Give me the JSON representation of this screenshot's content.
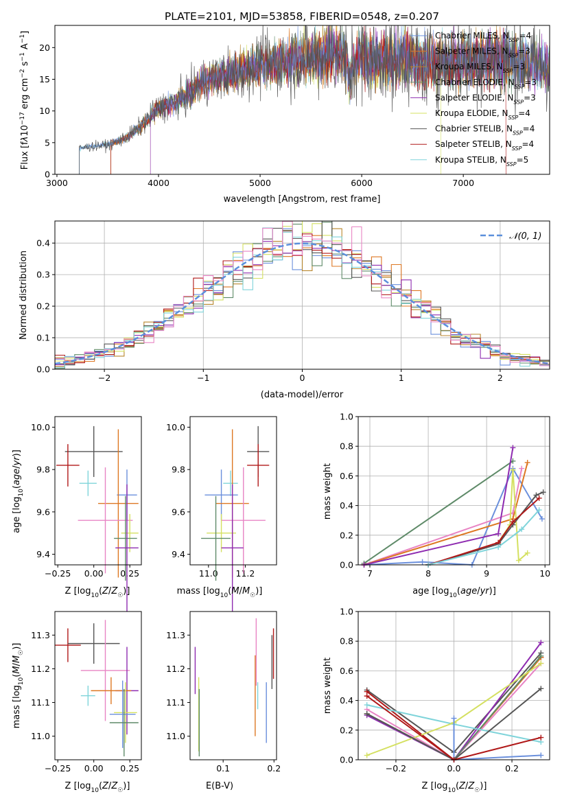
{
  "figure": {
    "title": "PLATE=2101, MJD=53858, FIBERID=0548, z=0.207"
  },
  "colors": {
    "Chabrier MILES": "#6a8fdc",
    "Salpeter MILES": "#dd7722",
    "Kroupa MILES": "#b8862c",
    "Chabrier ELODIE": "#5e8a68",
    "Salpeter ELODIE": "#8e2bb0",
    "Kroupa ELODIE": "#d4e060",
    "Chabrier STELIB": "#555555",
    "Salpeter STELIB": "#b01818",
    "Kroupa STELIB": "#7fd4da",
    "pink": "#e884c4"
  },
  "chart_data": [
    {
      "id": "spectrum",
      "type": "line",
      "xlabel": "wavelength [Angstrom, rest frame]",
      "ylabel": "Flux [fλ10⁻¹⁷ erg cm⁻² s⁻¹ A⁻¹]",
      "xlim": [
        2980,
        7850
      ],
      "ylim": [
        0,
        23.5
      ],
      "xticks": [
        3000,
        4000,
        5000,
        6000,
        7000
      ],
      "yticks": [
        0,
        5,
        10,
        15,
        20
      ],
      "legend_position": "right",
      "series": [
        {
          "name": "Chabrier MILES, N_SSP=4",
          "color": "#6a8fdc"
        },
        {
          "name": "Salpeter MILES, N_SSP=3",
          "color": "#dd7722"
        },
        {
          "name": "Kroupa MILES, N_SSP=3",
          "color": "#b8862c"
        },
        {
          "name": "Chabrier ELODIE, N_SSP=3",
          "color": "#5e8a68"
        },
        {
          "name": "Salpeter ELODIE, N_SSP=3",
          "color": "#8e2bb0"
        },
        {
          "name": "Kroupa ELODIE, N_SSP=4",
          "color": "#d4e060"
        },
        {
          "name": "Chabrier STELIB, N_SSP=4",
          "color": "#555555"
        },
        {
          "name": "Salpeter STELIB, N_SSP=4",
          "color": "#b01818"
        },
        {
          "name": "Kroupa STELIB, N_SSP=5",
          "color": "#7fd4da"
        }
      ],
      "continuum": {
        "x": [
          3220,
          3300,
          3400,
          3500,
          3600,
          3700,
          3800,
          3900,
          4000,
          4100,
          4200,
          4300,
          4400,
          4500,
          4600,
          4700,
          4800,
          4900,
          5000,
          5100,
          5200,
          5300,
          5400,
          5500,
          5600,
          5700,
          5800,
          5900,
          6000,
          6100,
          6200,
          6300,
          6400,
          6500,
          6600,
          6700,
          6800,
          6900,
          7000,
          7100,
          7200,
          7300,
          7400,
          7500,
          7600,
          7700,
          7800
        ],
        "y": [
          4.1,
          4.3,
          4.5,
          4.6,
          5.2,
          6.0,
          7.2,
          8.8,
          10.4,
          11.0,
          11.7,
          12.6,
          14.2,
          15.0,
          15.6,
          15.8,
          16.2,
          16.8,
          17.4,
          17.2,
          17.9,
          18.2,
          18.4,
          18.2,
          18.6,
          19.0,
          19.2,
          16.8,
          18.8,
          17.8,
          18.4,
          17.6,
          18.6,
          17.8,
          17.6,
          17.8,
          17.6,
          17.8,
          18.0,
          17.8,
          18.2,
          18.4,
          18.2,
          18.0,
          17.6,
          17.4,
          17.2
        ]
      },
      "start_edges": [
        3220,
        3530,
        3920
      ]
    },
    {
      "id": "residual-histogram",
      "type": "line",
      "xlabel": "(data-model)/error",
      "ylabel": "Normed distribution",
      "xlim": [
        -2.5,
        2.5
      ],
      "ylim": [
        0,
        0.47
      ],
      "xticks": [
        -2,
        -1,
        0,
        1,
        2
      ],
      "yticks": [
        0.0,
        0.1,
        0.2,
        0.3,
        0.4
      ],
      "grid": true,
      "legend_position": "top-right",
      "reference": {
        "name": "𝒩(0, 1)",
        "color": "#5b8fdc",
        "style": "dashed"
      },
      "bin_width": 0.1
    },
    {
      "id": "age-vs-Z",
      "type": "scatter",
      "xlabel": "Z [log₁₀(Z/Z☉)]",
      "ylabel": "age  [log₁₀(age/yr)]",
      "xlim": [
        -0.27,
        0.33
      ],
      "ylim": [
        9.35,
        10.05
      ],
      "xticks": [
        -0.25,
        0.0,
        0.25
      ],
      "yticks": [
        9.4,
        9.6,
        9.8,
        10.0
      ],
      "errorbars": [
        {
          "color": "#555555",
          "x": 0.0,
          "xerr": 0.2,
          "y": 9.885,
          "yerr": 0.12
        },
        {
          "color": "#b01818",
          "x": -0.18,
          "xerr": 0.08,
          "y": 9.82,
          "yerr": 0.1
        },
        {
          "color": "#7fd4da",
          "x": -0.04,
          "xerr": 0.06,
          "y": 9.735,
          "yerr": 0.06
        },
        {
          "color": "#6a8fdc",
          "x": 0.23,
          "xerr": 0.07,
          "y": 9.68,
          "yerr": 0.12
        },
        {
          "color": "#dd7722",
          "x": 0.17,
          "xerr": 0.14,
          "y": 9.64,
          "yerr": 0.35
        },
        {
          "color": "#e884c4",
          "x": 0.08,
          "xerr": 0.19,
          "y": 9.56,
          "yerr": 0.25
        },
        {
          "color": "#d4e060",
          "x": 0.25,
          "xerr": 0.06,
          "y": 9.5,
          "yerr": 0.09
        },
        {
          "color": "#5e8a68",
          "x": 0.22,
          "xerr": 0.08,
          "y": 9.475,
          "yerr": 0.2
        },
        {
          "color": "#8e2bb0",
          "x": 0.23,
          "xerr": 0.08,
          "y": 9.43,
          "yerr": 0.3
        }
      ]
    },
    {
      "id": "age-vs-mass",
      "type": "scatter",
      "xlabel": "mass [log₁₀(M/M☉)]",
      "ylabel": "",
      "xlim": [
        10.9,
        11.37
      ],
      "ylim": [
        9.35,
        10.05
      ],
      "xticks": [
        11.0,
        11.2
      ],
      "yticks": [
        9.4,
        9.6,
        9.8,
        10.0
      ],
      "errorbars": [
        {
          "color": "#555555",
          "x": 11.27,
          "xerr": 0.06,
          "y": 9.885,
          "yerr": 0.12
        },
        {
          "color": "#b01818",
          "x": 11.27,
          "xerr": 0.06,
          "y": 9.82,
          "yerr": 0.1
        },
        {
          "color": "#7fd4da",
          "x": 11.12,
          "xerr": 0.04,
          "y": 9.735,
          "yerr": 0.06
        },
        {
          "color": "#6a8fdc",
          "x": 11.07,
          "xerr": 0.09,
          "y": 9.68,
          "yerr": 0.12
        },
        {
          "color": "#dd7722",
          "x": 11.13,
          "xerr": 0.09,
          "y": 9.64,
          "yerr": 0.35
        },
        {
          "color": "#e884c4",
          "x": 11.19,
          "xerr": 0.12,
          "y": 9.56,
          "yerr": 0.25
        },
        {
          "color": "#d4e060",
          "x": 11.07,
          "xerr": 0.08,
          "y": 9.5,
          "yerr": 0.09
        },
        {
          "color": "#5e8a68",
          "x": 11.04,
          "xerr": 0.08,
          "y": 9.475,
          "yerr": 0.2
        },
        {
          "color": "#8e2bb0",
          "x": 11.13,
          "xerr": 0.06,
          "y": 9.43,
          "yerr": 0.3
        }
      ]
    },
    {
      "id": "weight-vs-age",
      "type": "line",
      "xlabel": "age  [log₁₀(age/yr)]",
      "ylabel": "mass weight",
      "xlim": [
        6.8,
        10.08
      ],
      "ylim": [
        0,
        1.0
      ],
      "xticks": [
        7,
        8,
        9,
        10
      ],
      "yticks": [
        0.0,
        0.2,
        0.4,
        0.6,
        0.8,
        1.0
      ],
      "grid": true,
      "series": [
        {
          "color": "#5e8a68",
          "x": [
            6.9,
            9.45
          ],
          "y": [
            0.01,
            0.7
          ]
        },
        {
          "color": "#6a8fdc",
          "x": [
            6.9,
            7.9,
            8.75,
            9.45,
            9.95
          ],
          "y": [
            0.0,
            0.02,
            0.0,
            0.65,
            0.31
          ]
        },
        {
          "color": "#e884c4",
          "x": [
            6.9,
            9.45,
            9.6
          ],
          "y": [
            0.0,
            0.35,
            0.65
          ]
        },
        {
          "color": "#dd7722",
          "x": [
            6.9,
            9.45,
            9.7
          ],
          "y": [
            0.0,
            0.31,
            0.69
          ]
        },
        {
          "color": "#8e2bb0",
          "x": [
            6.9,
            9.2,
            9.45
          ],
          "y": [
            0.0,
            0.21,
            0.79
          ]
        },
        {
          "color": "#d4e060",
          "x": [
            9.2,
            9.4,
            9.45,
            9.55,
            9.7
          ],
          "y": [
            0.15,
            0.27,
            0.64,
            0.03,
            0.08
          ]
        },
        {
          "color": "#555555",
          "x": [
            8.0,
            9.2,
            9.45,
            9.85,
            9.97
          ],
          "y": [
            0.0,
            0.14,
            0.27,
            0.47,
            0.49
          ]
        },
        {
          "color": "#b01818",
          "x": [
            8.0,
            9.2,
            9.45,
            9.9
          ],
          "y": [
            0.0,
            0.15,
            0.29,
            0.45
          ]
        },
        {
          "color": "#7fd4da",
          "x": [
            8.0,
            9.2,
            9.6,
            9.9
          ],
          "y": [
            0.0,
            0.12,
            0.24,
            0.37
          ]
        }
      ]
    },
    {
      "id": "mass-vs-Z",
      "type": "scatter",
      "xlabel": "Z [log₁₀(Z/Z☉)]",
      "ylabel": "mass [log₁₀(M/M☉)]",
      "xlim": [
        -0.27,
        0.33
      ],
      "ylim": [
        10.93,
        11.37
      ],
      "xticks": [
        -0.25,
        0.0,
        0.25
      ],
      "yticks": [
        11.0,
        11.1,
        11.2,
        11.3
      ],
      "errorbars": [
        {
          "color": "#b01818",
          "x": -0.18,
          "xerr": 0.09,
          "y": 11.27,
          "yerr": 0.05
        },
        {
          "color": "#555555",
          "x": 0.0,
          "xerr": 0.18,
          "y": 11.275,
          "yerr": 0.06
        },
        {
          "color": "#e884c4",
          "x": 0.08,
          "xerr": 0.17,
          "y": 11.195,
          "yerr": 0.15
        },
        {
          "color": "#8e2bb0",
          "x": 0.23,
          "xerr": 0.08,
          "y": 11.135,
          "yerr": 0.13
        },
        {
          "color": "#dd7722",
          "x": 0.12,
          "xerr": 0.14,
          "y": 11.135,
          "yerr": 0.04
        },
        {
          "color": "#7fd4da",
          "x": -0.04,
          "xerr": 0.05,
          "y": 11.12,
          "yerr": 0.03
        },
        {
          "color": "#d4e060",
          "x": 0.22,
          "xerr": 0.08,
          "y": 11.07,
          "yerr": 0.09
        },
        {
          "color": "#6a8fdc",
          "x": 0.2,
          "xerr": 0.09,
          "y": 11.065,
          "yerr": 0.1
        },
        {
          "color": "#5e8a68",
          "x": 0.21,
          "xerr": 0.1,
          "y": 11.04,
          "yerr": 0.1
        }
      ]
    },
    {
      "id": "mass-vs-ebv",
      "type": "scatter",
      "xlabel": "E(B-V)",
      "ylabel": "",
      "xlim": [
        0.035,
        0.205
      ],
      "ylim": [
        10.93,
        11.37
      ],
      "xticks": [
        0.1,
        0.2
      ],
      "yticks": [
        11.0,
        11.1,
        11.2,
        11.3
      ],
      "errorbars": [
        {
          "color": "#8e2bb0",
          "x": 0.045,
          "xerr": 0,
          "y": 11.195,
          "yerr": 0.07
        },
        {
          "color": "#d4e060",
          "x": 0.052,
          "xerr": 0,
          "y": 11.065,
          "yerr": 0.11
        },
        {
          "color": "#5e8a68",
          "x": 0.053,
          "xerr": 0,
          "y": 11.04,
          "yerr": 0.1
        },
        {
          "color": "#dd7722",
          "x": 0.163,
          "xerr": 0,
          "y": 11.12,
          "yerr": 0.12
        },
        {
          "color": "#e884c4",
          "x": 0.165,
          "xerr": 0,
          "y": 11.25,
          "yerr": 0.1
        },
        {
          "color": "#7fd4da",
          "x": 0.168,
          "xerr": 0,
          "y": 11.12,
          "yerr": 0.04
        },
        {
          "color": "#6a8fdc",
          "x": 0.185,
          "xerr": 0,
          "y": 11.07,
          "yerr": 0.09
        },
        {
          "color": "#555555",
          "x": 0.196,
          "xerr": 0,
          "y": 11.22,
          "yerr": 0.08
        },
        {
          "color": "#b01818",
          "x": 0.199,
          "xerr": 0,
          "y": 11.245,
          "yerr": 0.075
        }
      ]
    },
    {
      "id": "weight-vs-Z",
      "type": "line",
      "xlabel": "Z [log₁₀(Z/Z☉)]",
      "ylabel": "mass weight",
      "xlim": [
        -0.33,
        0.33
      ],
      "ylim": [
        0,
        1.0
      ],
      "xticks": [
        -0.2,
        0.0,
        0.2
      ],
      "yticks": [
        0.0,
        0.2,
        0.4,
        0.6,
        0.8,
        1.0
      ],
      "grid": true,
      "series": [
        {
          "color": "#555555",
          "x": [
            -0.3,
            0.0,
            0.3
          ],
          "y": [
            0.47,
            0.05,
            0.72
          ]
        },
        {
          "color": "#b01818",
          "x": [
            -0.3,
            0.0,
            0.3
          ],
          "y": [
            0.46,
            0.0,
            0.69
          ]
        },
        {
          "color": "#dd7722",
          "x": [
            -0.3,
            0.0,
            0.3
          ],
          "y": [
            0.31,
            0.0,
            0.69
          ]
        },
        {
          "color": "#e884c4",
          "x": [
            -0.3,
            0.0,
            0.3
          ],
          "y": [
            0.34,
            0.0,
            0.65
          ]
        },
        {
          "color": "#8e2bb0",
          "x": [
            -0.3,
            0.0,
            0.3
          ],
          "y": [
            0.3,
            0.0,
            0.79
          ]
        },
        {
          "color": "#5e8a68",
          "x": [
            -0.3,
            0.0,
            0.3
          ],
          "y": [
            0.31,
            0.0,
            0.7
          ]
        },
        {
          "color": "#7fd4da",
          "x": [
            -0.3,
            0.0,
            0.3
          ],
          "y": [
            0.37,
            0.24,
            0.12
          ]
        },
        {
          "color": "#d4e060",
          "x": [
            -0.3,
            0.0,
            0.3
          ],
          "y": [
            0.03,
            0.25,
            0.65
          ]
        },
        {
          "color": "#6a8fdc",
          "x": [
            0.0,
            0.0,
            0.3
          ],
          "y": [
            0.28,
            0.0,
            0.03
          ]
        },
        {
          "color": "#555555",
          "x": [
            -0.3,
            0.0,
            0.3
          ],
          "y": [
            0.31,
            0.0,
            0.48
          ]
        },
        {
          "color": "#b01818",
          "x": [
            -0.3,
            0.0,
            0.3
          ],
          "y": [
            0.43,
            0.0,
            0.15
          ]
        }
      ]
    }
  ]
}
